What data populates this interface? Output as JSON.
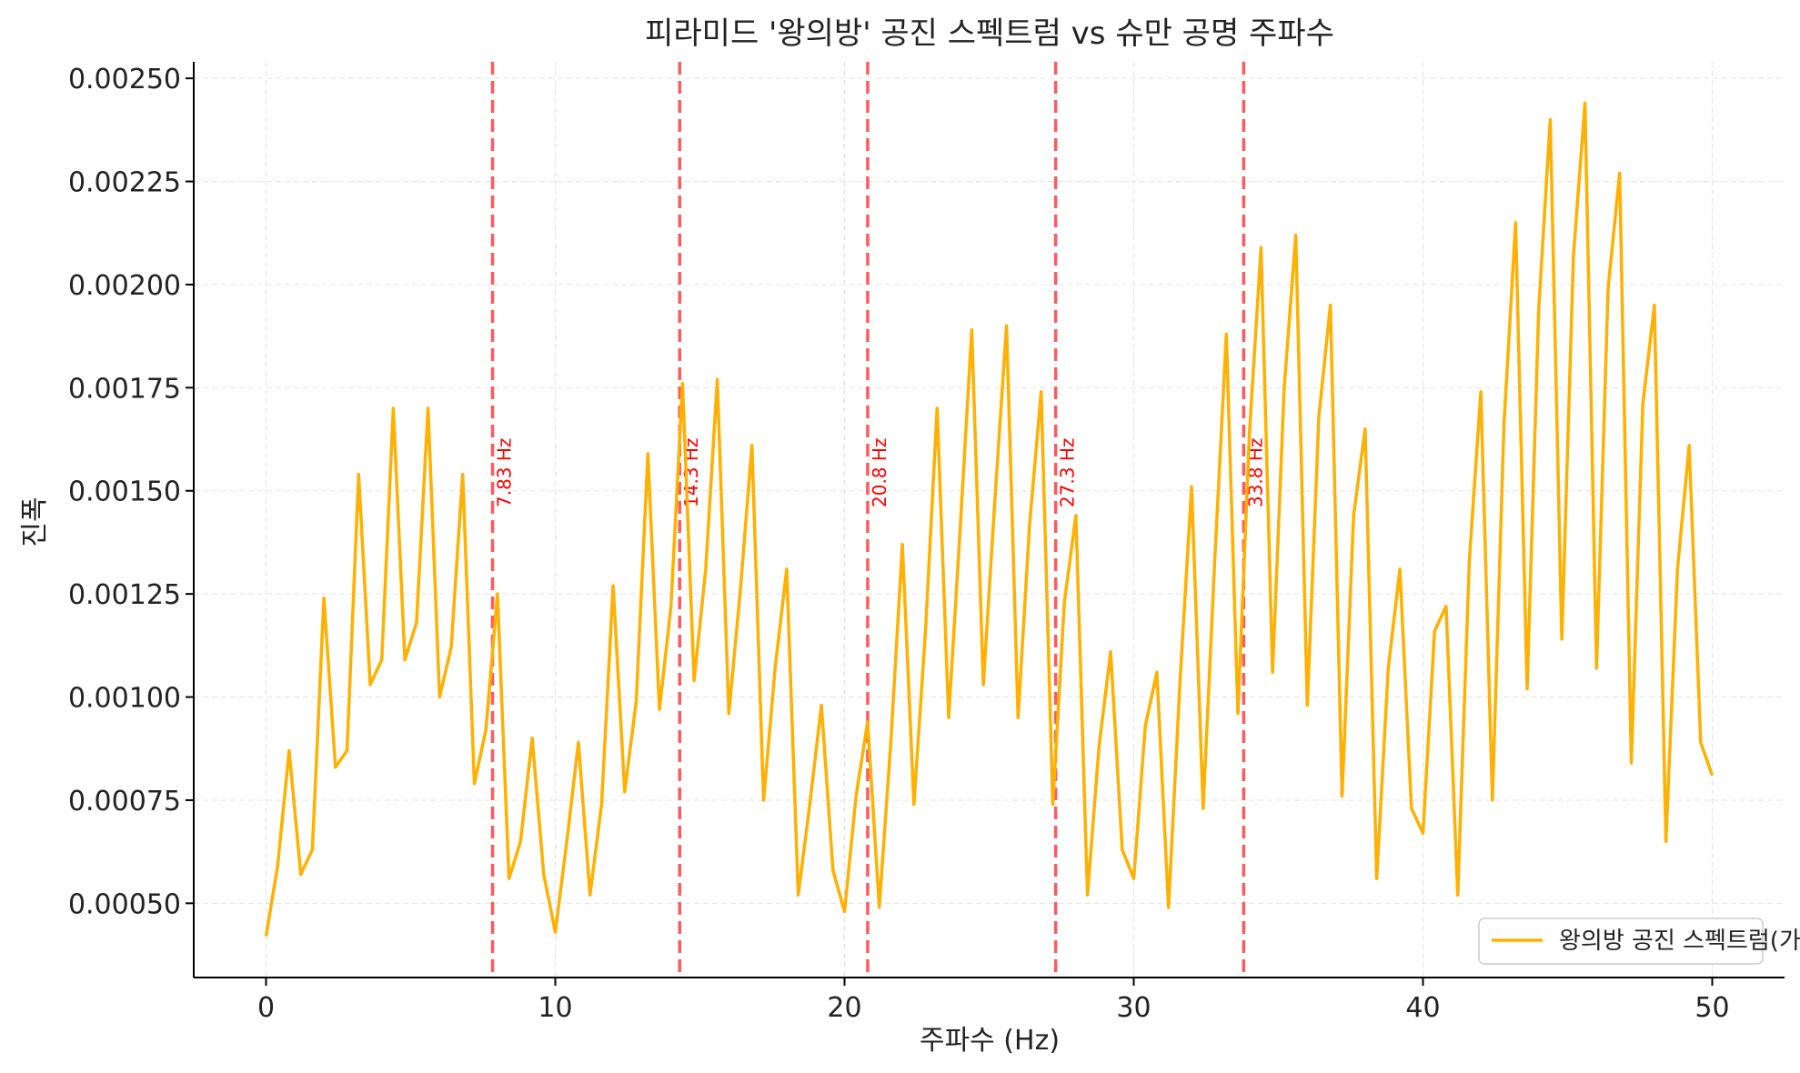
{
  "colors": {
    "series": "#ffb000",
    "resonance_lines": "#ff5a5f",
    "resonance_labels": "#ff0000",
    "grid": "#e3e3e3"
  },
  "chart_data": {
    "type": "line",
    "title": "피라미드 '왕의방' 공진 스펙트럼 vs 슈만 공명 주파수",
    "xlabel": "주파수 (Hz)",
    "ylabel": "진폭",
    "xlim": [
      -2.5,
      52.5
    ],
    "ylim": [
      0.00032,
      0.00254
    ],
    "xticks": [
      0,
      10,
      20,
      30,
      40,
      50
    ],
    "xtick_labels": [
      "0",
      "10",
      "20",
      "30",
      "40",
      "50"
    ],
    "yticks": [
      0.0005,
      0.00075,
      0.001,
      0.00125,
      0.0015,
      0.00175,
      0.002,
      0.00225,
      0.0025
    ],
    "ytick_labels": [
      "0.00050",
      "0.00075",
      "0.00100",
      "0.00125",
      "0.00150",
      "0.00175",
      "0.00200",
      "0.00225",
      "0.00250"
    ],
    "grid": true,
    "legend_position": "lower-right",
    "series": [
      {
        "name": "왕의방 공진 스펙트럼(가상)",
        "x": [
          0.0,
          0.4,
          0.8,
          1.2,
          1.6,
          2.0,
          2.4,
          2.8,
          3.2,
          3.6,
          4.0,
          4.4,
          4.8,
          5.2,
          5.6,
          6.0,
          6.4,
          6.8,
          7.2,
          7.6,
          8.0,
          8.4,
          8.8,
          9.2,
          9.6,
          10.0,
          10.4,
          10.8,
          11.2,
          11.6,
          12.0,
          12.4,
          12.8,
          13.2,
          13.6,
          14.0,
          14.4,
          14.8,
          15.2,
          15.6,
          16.0,
          16.4,
          16.8,
          17.2,
          17.6,
          18.0,
          18.4,
          18.8,
          19.2,
          19.6,
          20.0,
          20.4,
          20.8,
          21.2,
          21.6,
          22.0,
          22.4,
          22.8,
          23.2,
          23.6,
          24.0,
          24.4,
          24.8,
          25.2,
          25.6,
          26.0,
          26.4,
          26.8,
          27.2,
          27.6,
          28.0,
          28.4,
          28.8,
          29.2,
          29.6,
          30.0,
          30.4,
          30.8,
          31.2,
          31.6,
          32.0,
          32.4,
          32.8,
          33.2,
          33.6,
          34.0,
          34.4,
          34.8,
          35.2,
          35.6,
          36.0,
          36.4,
          36.8,
          37.2,
          37.6,
          38.0,
          38.4,
          38.8,
          39.2,
          39.6,
          40.0,
          40.4,
          40.8,
          41.2,
          41.6,
          42.0,
          42.4,
          42.8,
          43.2,
          43.6,
          44.0,
          44.4,
          44.8,
          45.2,
          45.6,
          46.0,
          46.4,
          46.8,
          47.2,
          47.6,
          48.0,
          48.4,
          48.8,
          49.2,
          49.6,
          50.0
        ],
        "values": [
          0.00042,
          0.00059,
          0.00087,
          0.00057,
          0.00063,
          0.00124,
          0.00083,
          0.00087,
          0.00154,
          0.00103,
          0.00109,
          0.0017,
          0.00109,
          0.00118,
          0.0017,
          0.001,
          0.00112,
          0.00154,
          0.00079,
          0.00092,
          0.00125,
          0.00056,
          0.00065,
          0.0009,
          0.00057,
          0.00043,
          0.00065,
          0.00089,
          0.00052,
          0.00074,
          0.00127,
          0.00077,
          0.00099,
          0.00159,
          0.00097,
          0.00122,
          0.00176,
          0.00104,
          0.00131,
          0.00177,
          0.00096,
          0.00126,
          0.00161,
          0.00075,
          0.00107,
          0.00131,
          0.00052,
          0.00074,
          0.00098,
          0.00058,
          0.00048,
          0.00076,
          0.00094,
          0.00049,
          0.00089,
          0.00137,
          0.00074,
          0.00116,
          0.0017,
          0.00095,
          0.00141,
          0.00189,
          0.00103,
          0.00148,
          0.0019,
          0.00095,
          0.00142,
          0.00174,
          0.00074,
          0.00123,
          0.00144,
          0.00052,
          0.00088,
          0.00111,
          0.00063,
          0.00056,
          0.00093,
          0.00106,
          0.00049,
          0.00104,
          0.00151,
          0.00073,
          0.00133,
          0.00188,
          0.00096,
          0.00164,
          0.00209,
          0.00106,
          0.00175,
          0.00212,
          0.00098,
          0.00168,
          0.00195,
          0.00076,
          0.00144,
          0.00165,
          0.00056,
          0.00107,
          0.00131,
          0.00073,
          0.00067,
          0.00116,
          0.00122,
          0.00052,
          0.00133,
          0.00174,
          0.00075,
          0.00166,
          0.00215,
          0.00102,
          0.00194,
          0.0024,
          0.00114,
          0.00207,
          0.00244,
          0.00107,
          0.00199,
          0.00227,
          0.00084,
          0.00171,
          0.00195,
          0.00065,
          0.00131,
          0.00161,
          0.00089,
          0.00081
        ]
      }
    ],
    "vertical_lines": [
      {
        "x": 7.83,
        "label": "7.83 Hz"
      },
      {
        "x": 14.3,
        "label": "14.3 Hz"
      },
      {
        "x": 20.8,
        "label": "20.8 Hz"
      },
      {
        "x": 27.3,
        "label": "27.3 Hz"
      },
      {
        "x": 33.8,
        "label": "33.8 Hz"
      }
    ]
  }
}
